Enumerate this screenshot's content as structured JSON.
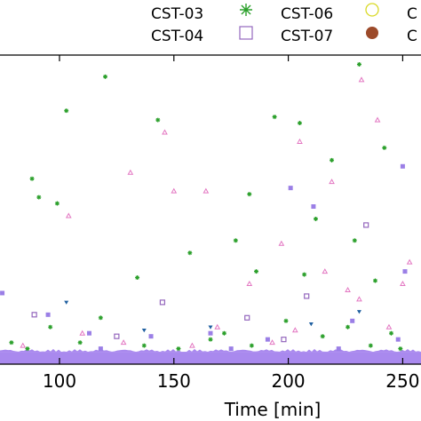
{
  "chart_data": {
    "type": "scatter",
    "xlabel": "Time [min]",
    "ylabel": "",
    "xlim": [
      74,
      258
    ],
    "ylim": [
      0,
      100
    ],
    "xticks": [
      100,
      150,
      200,
      250
    ],
    "grid": false,
    "legend_position": "top",
    "series": [
      {
        "name": "CST-03",
        "marker": "star",
        "color": "#2ca02c",
        "points": [
          {
            "x": 120,
            "y": 93
          },
          {
            "x": 103,
            "y": 82
          },
          {
            "x": 143,
            "y": 79
          },
          {
            "x": 88,
            "y": 60
          },
          {
            "x": 91,
            "y": 54
          },
          {
            "x": 99,
            "y": 52
          },
          {
            "x": 183,
            "y": 55
          },
          {
            "x": 194,
            "y": 80
          },
          {
            "x": 205,
            "y": 78
          },
          {
            "x": 219,
            "y": 66
          },
          {
            "x": 231,
            "y": 97
          },
          {
            "x": 242,
            "y": 70
          },
          {
            "x": 229,
            "y": 40
          },
          {
            "x": 177,
            "y": 40
          },
          {
            "x": 207,
            "y": 29
          },
          {
            "x": 238,
            "y": 27
          },
          {
            "x": 186,
            "y": 30
          },
          {
            "x": 212,
            "y": 47
          },
          {
            "x": 134,
            "y": 28
          },
          {
            "x": 157,
            "y": 36
          },
          {
            "x": 118,
            "y": 15
          },
          {
            "x": 96,
            "y": 12
          },
          {
            "x": 172,
            "y": 10
          },
          {
            "x": 199,
            "y": 14
          },
          {
            "x": 226,
            "y": 12
          },
          {
            "x": 245,
            "y": 10
          },
          {
            "x": 109,
            "y": 7
          },
          {
            "x": 137,
            "y": 6
          },
          {
            "x": 166,
            "y": 8
          },
          {
            "x": 184,
            "y": 6
          },
          {
            "x": 215,
            "y": 9
          },
          {
            "x": 236,
            "y": 6
          },
          {
            "x": 79,
            "y": 7
          },
          {
            "x": 86,
            "y": 5
          },
          {
            "x": 152,
            "y": 5
          },
          {
            "x": 249,
            "y": 5
          }
        ]
      },
      {
        "name": "CST-04",
        "marker": "open-square",
        "color": "#9467bd",
        "points": [
          {
            "x": 89,
            "y": 16
          },
          {
            "x": 145,
            "y": 20
          },
          {
            "x": 182,
            "y": 15
          },
          {
            "x": 234,
            "y": 45
          },
          {
            "x": 208,
            "y": 22
          },
          {
            "x": 125,
            "y": 9
          },
          {
            "x": 198,
            "y": 8
          }
        ]
      },
      {
        "name": "CST-06",
        "marker": "open-circle",
        "color": "#d9d926",
        "points": []
      },
      {
        "name": "CST-07",
        "marker": "filled-circle",
        "color": "#9c4a2a",
        "points": []
      },
      {
        "name": "",
        "marker": "filled-square",
        "color": "#9b7fe6",
        "points": [
          {
            "x": 75,
            "y": 23
          },
          {
            "x": 250,
            "y": 64
          },
          {
            "x": 251,
            "y": 30
          },
          {
            "x": 201,
            "y": 57
          },
          {
            "x": 211,
            "y": 51
          },
          {
            "x": 166,
            "y": 10
          },
          {
            "x": 113,
            "y": 10
          },
          {
            "x": 95,
            "y": 16
          },
          {
            "x": 228,
            "y": 14
          },
          {
            "x": 191,
            "y": 8
          },
          {
            "x": 140,
            "y": 9
          },
          {
            "x": 248,
            "y": 8
          },
          {
            "x": 118,
            "y": 5
          },
          {
            "x": 175,
            "y": 5
          },
          {
            "x": 222,
            "y": 5
          }
        ]
      },
      {
        "name": "",
        "marker": "open-triangle",
        "color": "#e377c2",
        "points": [
          {
            "x": 232,
            "y": 92
          },
          {
            "x": 239,
            "y": 79
          },
          {
            "x": 146,
            "y": 75
          },
          {
            "x": 205,
            "y": 72
          },
          {
            "x": 104,
            "y": 48
          },
          {
            "x": 131,
            "y": 62
          },
          {
            "x": 150,
            "y": 56
          },
          {
            "x": 164,
            "y": 56
          },
          {
            "x": 197,
            "y": 39
          },
          {
            "x": 219,
            "y": 59
          },
          {
            "x": 216,
            "y": 30
          },
          {
            "x": 183,
            "y": 26
          },
          {
            "x": 226,
            "y": 24
          },
          {
            "x": 231,
            "y": 21
          },
          {
            "x": 250,
            "y": 26
          },
          {
            "x": 253,
            "y": 33
          },
          {
            "x": 110,
            "y": 10
          },
          {
            "x": 169,
            "y": 12
          },
          {
            "x": 203,
            "y": 11
          },
          {
            "x": 244,
            "y": 12
          },
          {
            "x": 128,
            "y": 7
          },
          {
            "x": 158,
            "y": 6
          },
          {
            "x": 193,
            "y": 7
          },
          {
            "x": 84,
            "y": 6
          }
        ]
      },
      {
        "name": "",
        "marker": "filled-triangle-down",
        "color": "#1f5fa0",
        "points": [
          {
            "x": 103,
            "y": 20
          },
          {
            "x": 210,
            "y": 13
          },
          {
            "x": 231,
            "y": 17
          },
          {
            "x": 166,
            "y": 12
          },
          {
            "x": 137,
            "y": 11
          }
        ]
      }
    ],
    "baseline_band": {
      "description": "dense cluster of points near the baseline",
      "color": "#a989ee",
      "y_range": [
        0,
        4
      ]
    }
  }
}
